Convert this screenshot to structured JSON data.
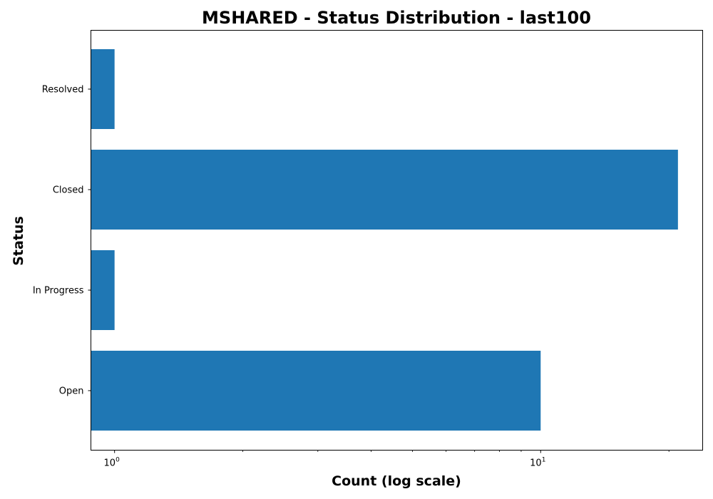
{
  "chart_data": {
    "type": "bar",
    "orientation": "horizontal",
    "title": "MSHARED - Status Distribution - last100",
    "xlabel": "Count (log scale)",
    "ylabel": "Status",
    "x_scale": "log",
    "xlim": [
      0.88,
      24
    ],
    "x_major_ticks": [
      1,
      10
    ],
    "x_major_tick_labels": [
      {
        "base": "10",
        "exponent": "0"
      },
      {
        "base": "10",
        "exponent": "1"
      }
    ],
    "x_minor_ticks": [
      2,
      3,
      4,
      5,
      6,
      7,
      8,
      9,
      20
    ],
    "categories": [
      "Open",
      "In Progress",
      "Closed",
      "Resolved"
    ],
    "values": [
      10,
      1,
      21,
      1
    ],
    "bar_color": "#1f77b4",
    "grid": false,
    "legend": "none"
  }
}
